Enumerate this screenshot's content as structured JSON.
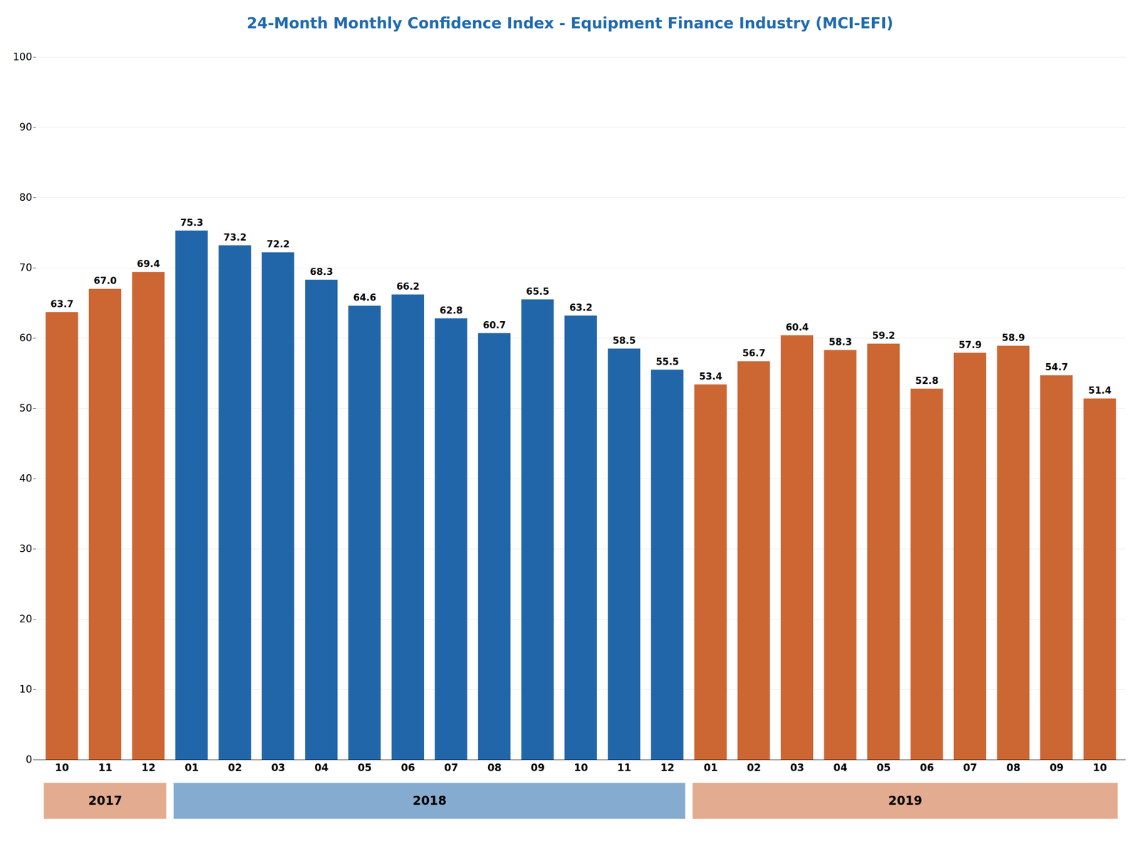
{
  "chart_data": {
    "type": "bar",
    "title": "24-Month Monthly Confidence Index - Equipment Finance Industry (MCI-EFI)",
    "categories": [
      "10",
      "11",
      "12",
      "01",
      "02",
      "03",
      "04",
      "05",
      "06",
      "07",
      "08",
      "09",
      "10",
      "11",
      "12",
      "01",
      "02",
      "03",
      "04",
      "05",
      "06",
      "07",
      "08",
      "09",
      "10"
    ],
    "values": [
      63.7,
      67.0,
      69.4,
      75.3,
      73.2,
      72.2,
      68.3,
      64.6,
      66.2,
      62.8,
      60.7,
      65.5,
      63.2,
      58.5,
      55.5,
      53.4,
      56.7,
      60.4,
      58.3,
      59.2,
      52.8,
      57.9,
      58.9,
      54.7,
      51.4
    ],
    "value_labels": [
      "63.7",
      "67.0",
      "69.4",
      "75.3",
      "73.2",
      "72.2",
      "68.3",
      "64.6",
      "66.2",
      "62.8",
      "60.7",
      "65.5",
      "63.2",
      "58.5",
      "55.5",
      "53.4",
      "56.7",
      "60.4",
      "58.3",
      "59.2",
      "52.8",
      "57.9",
      "58.9",
      "54.7",
      "51.4"
    ],
    "colors": [
      "#CC6633",
      "#CC6633",
      "#CC6633",
      "#2266AA",
      "#2266AA",
      "#2266AA",
      "#2266AA",
      "#2266AA",
      "#2266AA",
      "#2266AA",
      "#2266AA",
      "#2266AA",
      "#2266AA",
      "#2266AA",
      "#2266AA",
      "#CC6633",
      "#CC6633",
      "#CC6633",
      "#CC6633",
      "#CC6633",
      "#CC6633",
      "#CC6633",
      "#CC6633",
      "#CC6633",
      "#CC6633"
    ],
    "groups": [
      {
        "label": "2017",
        "start": 0,
        "end": 3,
        "color": "#CC6633"
      },
      {
        "label": "2018",
        "start": 3,
        "end": 15,
        "color": "#2266AA"
      },
      {
        "label": "2019",
        "start": 15,
        "end": 25,
        "color": "#CC6633"
      }
    ],
    "ylim": [
      0,
      100
    ],
    "yticks": [
      0,
      10,
      20,
      30,
      40,
      50,
      60,
      70,
      80,
      90,
      100
    ],
    "grid": true,
    "data_labels": true
  }
}
